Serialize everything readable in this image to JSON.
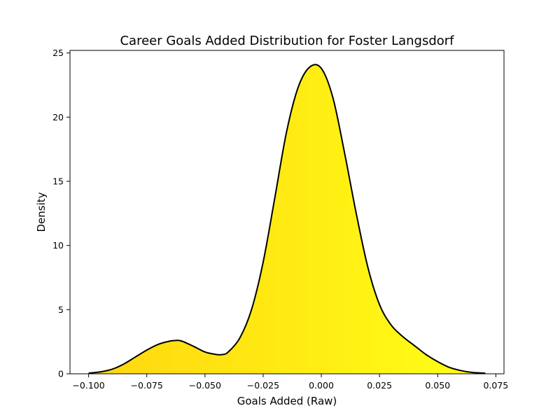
{
  "chart_data": {
    "type": "area",
    "title": "Career Goals Added Distribution for Foster Langsdorf",
    "xlabel": "Goals Added (Raw)",
    "ylabel": "Density",
    "xlim": [
      -0.108,
      0.0785
    ],
    "ylim": [
      0,
      25.2
    ],
    "x_ticks": [
      -0.1,
      -0.075,
      -0.05,
      -0.025,
      0.0,
      0.025,
      0.05,
      0.075
    ],
    "x_tick_labels": [
      "−0.100",
      "−0.075",
      "−0.050",
      "−0.025",
      "0.000",
      "0.025",
      "0.050",
      "0.075"
    ],
    "y_ticks": [
      0,
      5,
      10,
      15,
      20,
      25
    ],
    "y_tick_labels": [
      "0",
      "5",
      "10",
      "15",
      "20",
      "25"
    ],
    "grid": false,
    "legend": "none",
    "fill_gradient": [
      "#FFD60F",
      "#FFFF17"
    ],
    "line_color": "#000000",
    "series": [
      {
        "x": [
          -0.1,
          -0.095,
          -0.09,
          -0.085,
          -0.08,
          -0.075,
          -0.07,
          -0.065,
          -0.0625,
          -0.06,
          -0.055,
          -0.05,
          -0.045,
          -0.0425,
          -0.04,
          -0.035,
          -0.03,
          -0.025,
          -0.02,
          -0.015,
          -0.01,
          -0.005,
          0.0,
          0.005,
          0.01,
          0.015,
          0.02,
          0.025,
          0.03,
          0.035,
          0.04,
          0.045,
          0.05,
          0.055,
          0.06,
          0.065,
          0.0705
        ],
        "y": [
          0.05,
          0.15,
          0.35,
          0.75,
          1.3,
          1.85,
          2.3,
          2.55,
          2.6,
          2.55,
          2.15,
          1.7,
          1.5,
          1.5,
          1.7,
          2.8,
          5.0,
          8.7,
          13.7,
          18.8,
          22.3,
          23.9,
          23.8,
          21.5,
          17.2,
          12.5,
          8.3,
          5.4,
          3.8,
          2.9,
          2.2,
          1.5,
          0.95,
          0.5,
          0.25,
          0.1,
          0.05
        ]
      }
    ]
  }
}
